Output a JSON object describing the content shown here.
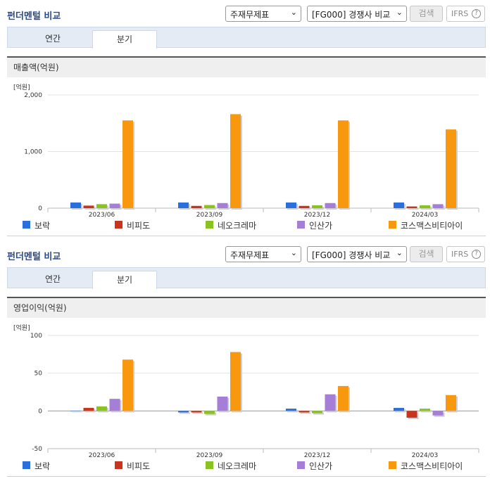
{
  "panels": [
    {
      "title": "펀더멘털 비교",
      "select1": "주재무제표",
      "select2": "[FG000] 경쟁사 비교",
      "search_label": "검색",
      "ifrs_label": "IFRS",
      "tabs": [
        "연간",
        "분기"
      ],
      "active_tab": 1,
      "section_title": "매출액(억원)",
      "unit_label": "[억원]"
    },
    {
      "title": "펀더멘털 비교",
      "select1": "주재무제표",
      "select2": "[FG000] 경쟁사 비교",
      "search_label": "검색",
      "ifrs_label": "IFRS",
      "tabs": [
        "연간",
        "분기"
      ],
      "active_tab": 1,
      "section_title": "영업이익(억원)",
      "unit_label": "[억원]"
    }
  ],
  "colors": {
    "보락": "#2a6fdb",
    "비피도": "#c8341c",
    "네오크레마": "#8ac21f",
    "인산가": "#a57ed8",
    "코스맥스비티아이": "#f7980e"
  },
  "chart_data": [
    {
      "type": "bar",
      "title": "매출액(억원)",
      "ylabel": "[억원]",
      "categories": [
        "2023/06",
        "2023/09",
        "2023/12",
        "2024/03"
      ],
      "ylim": [
        0,
        2000
      ],
      "yticks": [
        0,
        1000,
        2000
      ],
      "ytick_labels": [
        "0",
        "1,000",
        "2,000"
      ],
      "legend": "bottom",
      "series": [
        {
          "name": "보락",
          "values": [
            100,
            100,
            100,
            100
          ]
        },
        {
          "name": "비피도",
          "values": [
            45,
            40,
            40,
            30
          ]
        },
        {
          "name": "네오크레마",
          "values": [
            70,
            55,
            50,
            50
          ]
        },
        {
          "name": "인산가",
          "values": [
            80,
            90,
            90,
            70
          ]
        },
        {
          "name": "코스맥스비티아이",
          "values": [
            1550,
            1660,
            1550,
            1390
          ]
        }
      ]
    },
    {
      "type": "bar",
      "title": "영업이익(억원)",
      "ylabel": "[억원]",
      "categories": [
        "2023/06",
        "2023/09",
        "2023/12",
        "2024/03"
      ],
      "ylim": [
        -50,
        100
      ],
      "yticks": [
        -50,
        0,
        50,
        100
      ],
      "ytick_labels": [
        "-50",
        "0",
        "50",
        "100"
      ],
      "legend": "bottom",
      "series": [
        {
          "name": "보락",
          "values": [
            0,
            -2,
            3,
            4
          ]
        },
        {
          "name": "비피도",
          "values": [
            4,
            -2,
            -2,
            -9
          ]
        },
        {
          "name": "네오크레마",
          "values": [
            6,
            -4,
            -3,
            3
          ]
        },
        {
          "name": "인산가",
          "values": [
            16,
            19,
            22,
            -6
          ]
        },
        {
          "name": "코스맥스비티아이",
          "values": [
            68,
            78,
            33,
            21
          ]
        }
      ]
    }
  ]
}
